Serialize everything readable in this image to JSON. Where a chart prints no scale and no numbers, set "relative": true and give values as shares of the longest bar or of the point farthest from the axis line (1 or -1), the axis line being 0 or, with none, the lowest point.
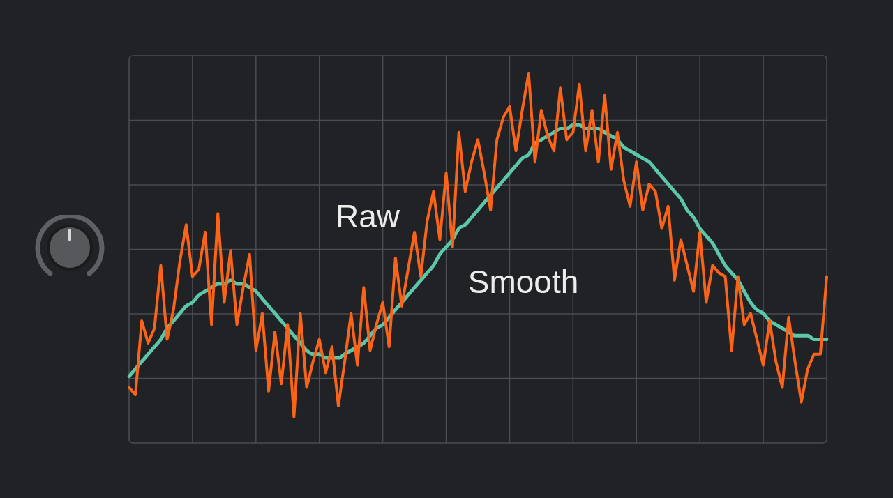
{
  "chart_data": {
    "type": "line",
    "relative": true,
    "grid": true,
    "legend": false,
    "marker": "none",
    "line_style": "solid",
    "categories": [
      null,
      null,
      null,
      null,
      null,
      null,
      null,
      null,
      null,
      null,
      null,
      null,
      null,
      null,
      null,
      null,
      null,
      null,
      null,
      null,
      null,
      null,
      null,
      null,
      null,
      null,
      null,
      null,
      null,
      null,
      null,
      null,
      null,
      null,
      null,
      null,
      null,
      null,
      null,
      null,
      null,
      null,
      null,
      null,
      null,
      null,
      null,
      null,
      null,
      null,
      null,
      null,
      null,
      null,
      null,
      null,
      null,
      null,
      null,
      null,
      null,
      null,
      null,
      null,
      null,
      null,
      null,
      null,
      null,
      null,
      null,
      null,
      null,
      null,
      null,
      null,
      null,
      null,
      null,
      null,
      null,
      null,
      null,
      null,
      null,
      null,
      null,
      null,
      null,
      null,
      null,
      null,
      null,
      null,
      null,
      null,
      null,
      null,
      null,
      null,
      null,
      null,
      null,
      null,
      null,
      null,
      null,
      null,
      null,
      null,
      null
    ],
    "series": [
      {
        "name": "Raw",
        "color": "#fa6419",
        "values": [
          0.15,
          0.13,
          0.33,
          0.27,
          0.31,
          0.48,
          0.28,
          0.36,
          0.49,
          0.59,
          0.45,
          0.47,
          0.57,
          0.32,
          0.62,
          0.38,
          0.52,
          0.32,
          0.42,
          0.51,
          0.25,
          0.35,
          0.14,
          0.3,
          0.16,
          0.32,
          0.07,
          0.35,
          0.15,
          0.22,
          0.28,
          0.19,
          0.26,
          0.1,
          0.22,
          0.35,
          0.21,
          0.42,
          0.25,
          0.32,
          0.38,
          0.26,
          0.5,
          0.37,
          0.47,
          0.57,
          0.45,
          0.6,
          0.68,
          0.55,
          0.73,
          0.53,
          0.84,
          0.68,
          0.76,
          0.82,
          0.73,
          0.63,
          0.82,
          0.88,
          0.91,
          0.79,
          0.9,
          1.0,
          0.76,
          0.9,
          0.83,
          0.79,
          0.96,
          0.82,
          0.84,
          0.97,
          0.79,
          0.9,
          0.76,
          0.94,
          0.74,
          0.84,
          0.71,
          0.64,
          0.76,
          0.63,
          0.7,
          0.68,
          0.58,
          0.64,
          0.44,
          0.55,
          0.48,
          0.41,
          0.57,
          0.38,
          0.48,
          0.46,
          0.45,
          0.25,
          0.45,
          0.32,
          0.35,
          0.28,
          0.21,
          0.33,
          0.22,
          0.15,
          0.34,
          0.22,
          0.11,
          0.2,
          0.24,
          0.24,
          0.45
        ]
      },
      {
        "name": "Smooth",
        "color": "#5cc6a8",
        "values": [
          0.18,
          0.2,
          0.22,
          0.24,
          0.26,
          0.28,
          0.31,
          0.33,
          0.35,
          0.37,
          0.38,
          0.4,
          0.41,
          0.42,
          0.43,
          0.43,
          0.44,
          0.43,
          0.43,
          0.42,
          0.41,
          0.39,
          0.37,
          0.35,
          0.33,
          0.31,
          0.29,
          0.27,
          0.25,
          0.24,
          0.24,
          0.23,
          0.23,
          0.23,
          0.24,
          0.25,
          0.26,
          0.27,
          0.29,
          0.31,
          0.32,
          0.34,
          0.36,
          0.38,
          0.4,
          0.42,
          0.44,
          0.46,
          0.48,
          0.51,
          0.53,
          0.55,
          0.58,
          0.59,
          0.61,
          0.63,
          0.65,
          0.67,
          0.69,
          0.71,
          0.73,
          0.75,
          0.77,
          0.78,
          0.81,
          0.82,
          0.83,
          0.84,
          0.85,
          0.85,
          0.86,
          0.86,
          0.85,
          0.85,
          0.85,
          0.84,
          0.83,
          0.82,
          0.8,
          0.79,
          0.78,
          0.77,
          0.76,
          0.74,
          0.72,
          0.7,
          0.68,
          0.66,
          0.63,
          0.61,
          0.58,
          0.56,
          0.54,
          0.51,
          0.48,
          0.46,
          0.44,
          0.41,
          0.38,
          0.36,
          0.35,
          0.33,
          0.32,
          0.31,
          0.3,
          0.29,
          0.29,
          0.29,
          0.28,
          0.28,
          0.28
        ]
      }
    ]
  }
}
